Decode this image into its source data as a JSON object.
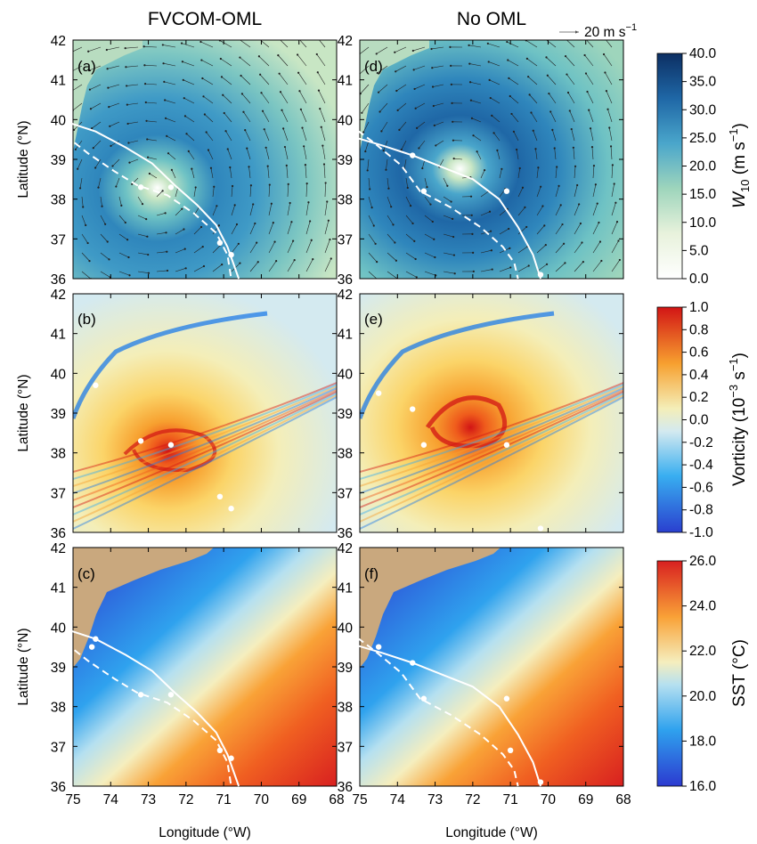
{
  "columns": [
    "FVCOM-OML",
    "No OML"
  ],
  "vector_key": {
    "label": "20 m s",
    "exp": "−1"
  },
  "axes": {
    "xlabel": "Longitude (°W)",
    "ylabel": "Latitude (°N)",
    "xticks": [
      "75",
      "74",
      "73",
      "72",
      "71",
      "70",
      "69",
      "68"
    ],
    "yticks": [
      "42",
      "41",
      "40",
      "39",
      "38",
      "37",
      "36"
    ]
  },
  "colors": {
    "land": "#c9a87e",
    "track": "#ffffff",
    "wind_scale": [
      "#ffffff",
      "#e8f2dc",
      "#c8e6c4",
      "#9ed5bc",
      "#6ec2c4",
      "#4aa6cb",
      "#2f86bc",
      "#1f67a6",
      "#154a87",
      "#0c2f63"
    ],
    "vort_scale": [
      "#2a3fcf",
      "#1e7be8",
      "#38aef0",
      "#8ad4f0",
      "#d4eaf0",
      "#f4eeb8",
      "#fbd468",
      "#f7a02f",
      "#ef5b1c",
      "#d21515"
    ],
    "sst_scale": [
      "#2c3ad0",
      "#1f6fe6",
      "#2fa2ee",
      "#6dc8f0",
      "#b5e0f0",
      "#f5eebe",
      "#fcd36a",
      "#f9a237",
      "#f05f21",
      "#d82020"
    ]
  },
  "chart_data": [
    {
      "type": "heatmap",
      "panel": "(a)",
      "field": "W10",
      "title": "FVCOM-OML",
      "xlabel": "",
      "ylabel": "Latitude (°N)",
      "xlim": [
        75,
        68
      ],
      "ylim": [
        36,
        42
      ],
      "storm_center": [
        72.7,
        38.4
      ],
      "tracks": [
        {
          "style": "solid",
          "lon": [
            75.2,
            74.4,
            73.6,
            72.9,
            72.3,
            71.7,
            71.2,
            70.9,
            70.6
          ],
          "lat": [
            39.95,
            39.7,
            39.3,
            38.9,
            38.35,
            37.85,
            37.35,
            36.8,
            36.0
          ]
        },
        {
          "style": "dashed",
          "lon": [
            75.2,
            74.6,
            73.9,
            73.3,
            72.5,
            71.8,
            71.2,
            70.9,
            70.8
          ],
          "lat": [
            39.6,
            39.15,
            38.7,
            38.35,
            38.1,
            37.65,
            37.15,
            36.6,
            36.0
          ]
        }
      ],
      "track_points": [
        [
          72.4,
          38.3
        ],
        [
          73.2,
          38.3
        ],
        [
          71.1,
          36.9
        ],
        [
          70.8,
          36.6
        ]
      ]
    },
    {
      "type": "heatmap",
      "panel": "(d)",
      "field": "W10",
      "title": "No OML",
      "xlabel": "",
      "ylabel": "",
      "xlim": [
        75,
        68
      ],
      "ylim": [
        36,
        42
      ],
      "storm_center": [
        72.2,
        38.8
      ],
      "tracks": [
        {
          "style": "solid",
          "lon": [
            75.3,
            74.4,
            73.6,
            72.8,
            72.0,
            71.3,
            70.8,
            70.4,
            70.2
          ],
          "lat": [
            39.6,
            39.35,
            39.1,
            38.8,
            38.5,
            38.0,
            37.3,
            36.6,
            36.0
          ]
        },
        {
          "style": "dashed",
          "lon": [
            75.3,
            74.6,
            73.9,
            73.4,
            72.6,
            71.8,
            71.2,
            70.9,
            70.8
          ],
          "lat": [
            39.9,
            39.4,
            38.85,
            38.2,
            37.8,
            37.3,
            36.8,
            36.4,
            36.0
          ]
        }
      ],
      "track_points": [
        [
          73.6,
          39.1
        ],
        [
          73.3,
          38.2
        ],
        [
          71.1,
          38.2
        ],
        [
          70.2,
          36.1
        ]
      ]
    },
    {
      "type": "heatmap",
      "panel": "(b)",
      "field": "Vorticity",
      "xlabel": "",
      "ylabel": "Latitude (°N)",
      "xlim": [
        75,
        68
      ],
      "ylim": [
        36,
        42
      ],
      "storm_center": [
        72.6,
        38.4
      ],
      "track_points": [
        [
          74.4,
          39.7
        ],
        [
          73.2,
          38.3
        ],
        [
          72.4,
          38.2
        ],
        [
          71.1,
          36.9
        ],
        [
          70.8,
          36.6
        ]
      ]
    },
    {
      "type": "heatmap",
      "panel": "(e)",
      "field": "Vorticity",
      "xlabel": "",
      "ylabel": "",
      "xlim": [
        75,
        68
      ],
      "ylim": [
        36,
        42
      ],
      "storm_center": [
        72.0,
        38.7
      ],
      "track_points": [
        [
          74.5,
          39.5
        ],
        [
          73.6,
          39.1
        ],
        [
          73.3,
          38.2
        ],
        [
          71.1,
          38.2
        ],
        [
          70.2,
          36.1
        ]
      ]
    },
    {
      "type": "heatmap",
      "panel": "(c)",
      "field": "SST",
      "xlabel": "Longitude (°W)",
      "ylabel": "Latitude (°N)",
      "xlim": [
        75,
        68
      ],
      "ylim": [
        36,
        42
      ],
      "tracks": [
        {
          "style": "solid",
          "lon": [
            75.2,
            74.4,
            73.6,
            72.9,
            72.3,
            71.7,
            71.2,
            70.9,
            70.6
          ],
          "lat": [
            39.95,
            39.7,
            39.3,
            38.9,
            38.35,
            37.85,
            37.35,
            36.8,
            36.0
          ]
        },
        {
          "style": "dashed",
          "lon": [
            75.2,
            74.6,
            73.9,
            73.3,
            72.5,
            71.8,
            71.2,
            70.9,
            70.8
          ],
          "lat": [
            39.6,
            39.15,
            38.7,
            38.35,
            38.1,
            37.65,
            37.15,
            36.6,
            36.0
          ]
        }
      ],
      "track_points": [
        [
          74.4,
          39.7
        ],
        [
          74.5,
          39.5
        ],
        [
          73.2,
          38.3
        ],
        [
          72.4,
          38.3
        ],
        [
          71.1,
          36.9
        ],
        [
          70.8,
          36.7
        ]
      ]
    },
    {
      "type": "heatmap",
      "panel": "(f)",
      "field": "SST",
      "xlabel": "Longitude (°W)",
      "ylabel": "",
      "xlim": [
        75,
        68
      ],
      "ylim": [
        36,
        42
      ],
      "tracks": [
        {
          "style": "solid",
          "lon": [
            75.3,
            74.4,
            73.6,
            72.8,
            72.0,
            71.3,
            70.8,
            70.4,
            70.2
          ],
          "lat": [
            39.6,
            39.35,
            39.1,
            38.8,
            38.5,
            38.0,
            37.3,
            36.6,
            36.0
          ]
        },
        {
          "style": "dashed",
          "lon": [
            75.3,
            74.6,
            73.9,
            73.4,
            72.6,
            71.8,
            71.2,
            70.9,
            70.8
          ],
          "lat": [
            39.9,
            39.4,
            38.85,
            38.2,
            37.8,
            37.3,
            36.8,
            36.4,
            36.0
          ]
        }
      ],
      "track_points": [
        [
          74.5,
          39.5
        ],
        [
          73.6,
          39.1
        ],
        [
          73.3,
          38.2
        ],
        [
          71.1,
          38.2
        ],
        [
          71.0,
          36.9
        ],
        [
          70.2,
          36.1
        ]
      ]
    }
  ],
  "colorbars": [
    {
      "panel_row": 0,
      "label": "W",
      "sub": "10",
      "unit": " (m s",
      "exp": "−1",
      "close": ")",
      "ticks": [
        "40.0",
        "35.0",
        "30.0",
        "25.0",
        "20.0",
        "15.0",
        "10.0",
        "5.0",
        "0.0"
      ]
    },
    {
      "panel_row": 1,
      "label": "Vorticity (10",
      "exp": "−3",
      "unit": " s",
      "exp2": "−1",
      "close": ")",
      "ticks": [
        "1.0",
        "0.8",
        "0.6",
        "0.4",
        "0.2",
        "0.0",
        "-0.2",
        "-0.4",
        "-0.6",
        "-0.8",
        "-1.0"
      ]
    },
    {
      "panel_row": 2,
      "label": "SST (°C)",
      "ticks": [
        "26.0",
        "24.0",
        "22.0",
        "20.0",
        "18.0",
        "16.0"
      ]
    }
  ]
}
